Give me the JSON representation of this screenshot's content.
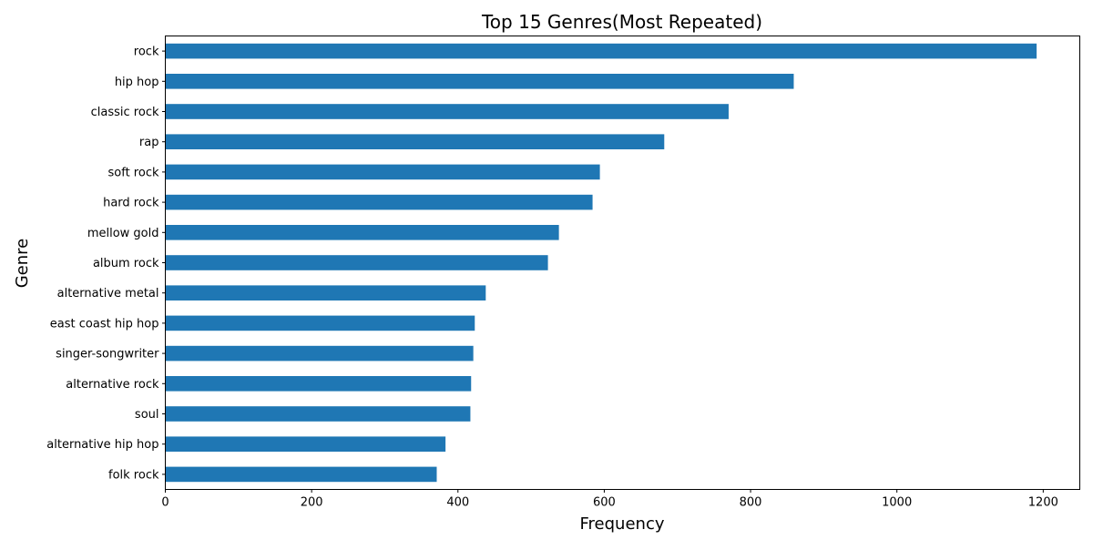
{
  "chart_data": {
    "type": "bar",
    "orientation": "horizontal",
    "title": "Top 15 Genres(Most Repeated)",
    "xlabel": "Frequency",
    "ylabel": "Genre",
    "xlim": [
      0,
      1250
    ],
    "xticks": [
      0,
      200,
      400,
      600,
      800,
      1000,
      1200
    ],
    "grid": false,
    "legend": "none",
    "bar_color": "#1f77b4",
    "categories": [
      "rock",
      "hip hop",
      "classic rock",
      "rap",
      "soft rock",
      "hard rock",
      "mellow gold",
      "album rock",
      "alternative metal",
      "east coast hip hop",
      "singer-songwriter",
      "alternative rock",
      "soul",
      "alternative hip hop",
      "folk rock"
    ],
    "values": [
      1191,
      859,
      770,
      682,
      594,
      584,
      538,
      523,
      438,
      423,
      421,
      418,
      417,
      383,
      371
    ]
  }
}
